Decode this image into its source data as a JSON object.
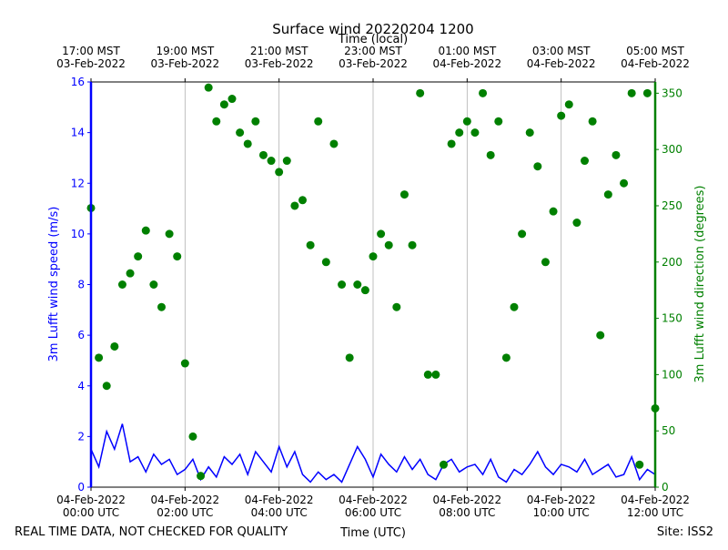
{
  "chart_data": {
    "type": "line",
    "title": "Surface wind 20220204 1200",
    "x2label": "Time (local)",
    "xlabel": "Time (UTC)",
    "ylabel": "3m Lufft wind speed (m/s)",
    "y2label": "3m Lufft wind direction (degrees)",
    "footer_left": "REAL TIME DATA, NOT CHECKED FOR QUALITY",
    "footer_right": "Site: ISS2",
    "x": [
      "2022-02-04T00:00",
      "2022-02-04T00:10",
      "2022-02-04T00:20",
      "2022-02-04T00:30",
      "2022-02-04T00:40",
      "2022-02-04T00:50",
      "2022-02-04T01:00",
      "2022-02-04T01:10",
      "2022-02-04T01:20",
      "2022-02-04T01:30",
      "2022-02-04T01:40",
      "2022-02-04T01:50",
      "2022-02-04T02:00",
      "2022-02-04T02:10",
      "2022-02-04T02:20",
      "2022-02-04T02:30",
      "2022-02-04T02:40",
      "2022-02-04T02:50",
      "2022-02-04T03:00",
      "2022-02-04T03:10",
      "2022-02-04T03:20",
      "2022-02-04T03:30",
      "2022-02-04T03:40",
      "2022-02-04T03:50",
      "2022-02-04T04:00",
      "2022-02-04T04:10",
      "2022-02-04T04:20",
      "2022-02-04T04:30",
      "2022-02-04T04:40",
      "2022-02-04T04:50",
      "2022-02-04T05:00",
      "2022-02-04T05:10",
      "2022-02-04T05:20",
      "2022-02-04T05:30",
      "2022-02-04T05:40",
      "2022-02-04T05:50",
      "2022-02-04T06:00",
      "2022-02-04T06:10",
      "2022-02-04T06:20",
      "2022-02-04T06:30",
      "2022-02-04T06:40",
      "2022-02-04T06:50",
      "2022-02-04T07:00",
      "2022-02-04T07:10",
      "2022-02-04T07:20",
      "2022-02-04T07:30",
      "2022-02-04T07:40",
      "2022-02-04T07:50",
      "2022-02-04T08:00",
      "2022-02-04T08:10",
      "2022-02-04T08:20",
      "2022-02-04T08:30",
      "2022-02-04T08:40",
      "2022-02-04T08:50",
      "2022-02-04T09:00",
      "2022-02-04T09:10",
      "2022-02-04T09:20",
      "2022-02-04T09:30",
      "2022-02-04T09:40",
      "2022-02-04T09:50",
      "2022-02-04T10:00",
      "2022-02-04T10:10",
      "2022-02-04T10:20",
      "2022-02-04T10:30",
      "2022-02-04T10:40",
      "2022-02-04T10:50",
      "2022-02-04T11:00",
      "2022-02-04T11:10",
      "2022-02-04T11:20",
      "2022-02-04T11:30",
      "2022-02-04T11:40",
      "2022-02-04T11:50",
      "2022-02-04T12:00"
    ],
    "xlim": [
      "2022-02-04T00:00",
      "2022-02-04T12:00"
    ],
    "xticks": [
      {
        "value": "2022-02-04T00:00",
        "label": "04-Feb-2022\n00:00 UTC"
      },
      {
        "value": "2022-02-04T02:00",
        "label": "04-Feb-2022\n02:00 UTC"
      },
      {
        "value": "2022-02-04T04:00",
        "label": "04-Feb-2022\n04:00 UTC"
      },
      {
        "value": "2022-02-04T06:00",
        "label": "04-Feb-2022\n06:00 UTC"
      },
      {
        "value": "2022-02-04T08:00",
        "label": "04-Feb-2022\n08:00 UTC"
      },
      {
        "value": "2022-02-04T10:00",
        "label": "04-Feb-2022\n10:00 UTC"
      },
      {
        "value": "2022-02-04T12:00",
        "label": "04-Feb-2022\n12:00 UTC"
      }
    ],
    "x2ticks": [
      {
        "value": "2022-02-04T00:00",
        "label": "17:00 MST\n03-Feb-2022"
      },
      {
        "value": "2022-02-04T02:00",
        "label": "19:00 MST\n03-Feb-2022"
      },
      {
        "value": "2022-02-04T04:00",
        "label": "21:00 MST\n03-Feb-2022"
      },
      {
        "value": "2022-02-04T06:00",
        "label": "23:00 MST\n03-Feb-2022"
      },
      {
        "value": "2022-02-04T08:00",
        "label": "01:00 MST\n04-Feb-2022"
      },
      {
        "value": "2022-02-04T10:00",
        "label": "03:00 MST\n04-Feb-2022"
      },
      {
        "value": "2022-02-04T12:00",
        "label": "05:00 MST\n04-Feb-2022"
      }
    ],
    "ylim": [
      0,
      16
    ],
    "yticks": [
      0,
      2,
      4,
      6,
      8,
      10,
      12,
      14,
      16
    ],
    "y2lim": [
      0,
      360
    ],
    "y2ticks": [
      0,
      50,
      100,
      150,
      200,
      250,
      300,
      350
    ],
    "grid": "x",
    "series": [
      {
        "type": "line",
        "color": "#0000ff",
        "values": [
          1.5,
          0.8,
          2.2,
          1.5,
          2.5,
          1.0,
          1.2,
          0.6,
          1.3,
          0.9,
          1.1,
          0.5,
          0.7,
          1.1,
          0.3,
          0.8,
          0.4,
          1.2,
          0.9,
          1.3,
          0.5,
          1.4,
          1.0,
          0.6,
          1.6,
          0.8,
          1.4,
          0.5,
          0.2,
          0.6,
          0.3,
          0.5,
          0.2,
          0.9,
          1.6,
          1.1,
          0.4,
          1.3,
          0.9,
          0.6,
          1.2,
          0.7,
          1.1,
          0.5,
          0.3,
          0.9,
          1.1,
          0.6,
          0.8,
          0.9,
          0.5,
          1.1,
          0.4,
          0.2,
          0.7,
          0.5,
          0.9,
          1.4,
          0.8,
          0.5,
          0.9,
          0.8,
          0.6,
          1.1,
          0.5,
          0.7,
          0.9,
          0.4,
          0.5,
          1.2,
          0.3,
          0.7,
          0.5
        ]
      },
      {
        "type": "scatter",
        "axis": "y2",
        "color": "#008000",
        "values": [
          248,
          115,
          90,
          125,
          180,
          190,
          205,
          228,
          180,
          160,
          225,
          205,
          110,
          45,
          10,
          355,
          325,
          340,
          345,
          315,
          305,
          325,
          295,
          290,
          280,
          290,
          250,
          255,
          215,
          325,
          200,
          305,
          180,
          115,
          180,
          175,
          205,
          225,
          215,
          160,
          260,
          215,
          350,
          100,
          100,
          20,
          305,
          315,
          325,
          315,
          350,
          295,
          325,
          115,
          160,
          225,
          315,
          285,
          200,
          245,
          330,
          340,
          235,
          290,
          325,
          135,
          260,
          295,
          270,
          350,
          20,
          350,
          70
        ]
      }
    ]
  }
}
